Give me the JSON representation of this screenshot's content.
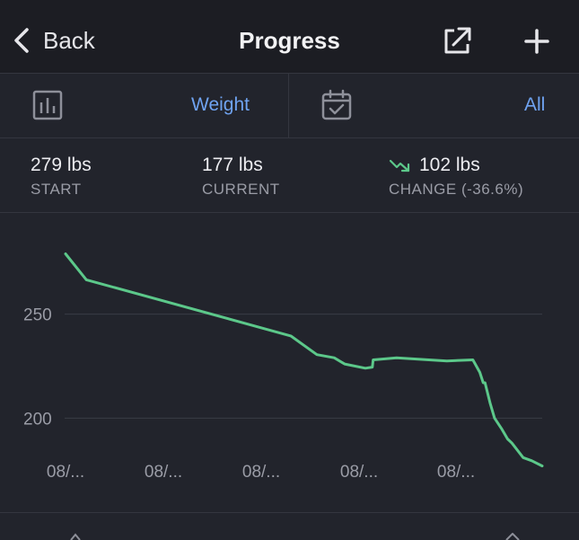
{
  "nav": {
    "back_label": "Back",
    "title": "Progress",
    "share_icon": "share-external-icon",
    "add_icon": "plus-icon"
  },
  "filters": {
    "metric_icon": "bar-chart-icon",
    "metric_label": "Weight",
    "range_icon": "calendar-check-icon",
    "range_label": "All",
    "accent": "#6fa3f1"
  },
  "stats": {
    "start_value": "279 lbs",
    "start_label": "START",
    "current_value": "177 lbs",
    "current_label": "CURRENT",
    "change_value": "102 lbs",
    "change_label": "CHANGE (-36.6%)",
    "trend_icon": "trend-down-icon",
    "trend_color": "#5cc88a"
  },
  "chart_data": {
    "type": "line",
    "xlabels": [
      "08/...",
      "08/...",
      "08/...",
      "08/...",
      "08/..."
    ],
    "ylabel": "",
    "ylim": [
      182,
      290
    ],
    "yticks": [
      250,
      200
    ],
    "grid": true,
    "line_color": "#5cc88a",
    "series": [
      {
        "x": [
          0,
          24,
          260,
          290,
          310,
          322,
          346,
          354,
          355,
          382,
          440,
          470,
          478,
          482,
          484,
          490,
          495,
          503,
          510,
          515,
          528,
          538,
          550
        ],
        "values": [
          279,
          266.5,
          239.5,
          230.5,
          229,
          226,
          224,
          224.5,
          228,
          229,
          227.5,
          228,
          222,
          217,
          217,
          207,
          200,
          195,
          190,
          188,
          181,
          179.5,
          177
        ]
      }
    ]
  }
}
